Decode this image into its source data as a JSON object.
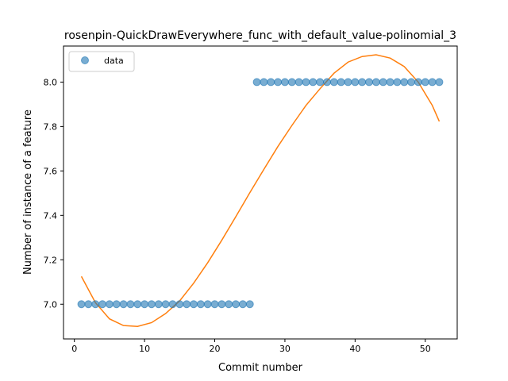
{
  "chart_data": {
    "type": "scatter",
    "title": "rosenpin-QuickDrawEverywhere_func_with_default_value-polinomial_3",
    "xlabel": "Commit number",
    "ylabel": "Number of instance of a feature",
    "xlim": [
      -1.55,
      54.55
    ],
    "ylim": [
      6.8437,
      8.1623
    ],
    "xticks": [
      0,
      10,
      20,
      30,
      40,
      50
    ],
    "yticks": [
      7.0,
      7.2,
      7.4,
      7.6,
      7.8,
      8.0
    ],
    "xtick_labels": [
      "0",
      "10",
      "20",
      "30",
      "40",
      "50"
    ],
    "ytick_labels": [
      "7.0",
      "7.2",
      "7.4",
      "7.6",
      "7.8",
      "8.0"
    ],
    "grid": false,
    "legend": {
      "position": "top-left",
      "entries": [
        "data"
      ]
    },
    "series": [
      {
        "name": "data",
        "kind": "points",
        "color": "#1f77b4",
        "x": [
          1,
          2,
          3,
          4,
          5,
          6,
          7,
          8,
          9,
          10,
          11,
          12,
          13,
          14,
          15,
          16,
          17,
          18,
          19,
          20,
          21,
          22,
          23,
          24,
          25,
          26,
          27,
          28,
          29,
          30,
          31,
          32,
          33,
          34,
          35,
          36,
          37,
          38,
          39,
          40,
          41,
          42,
          43,
          44,
          45,
          46,
          47,
          48,
          49,
          50,
          51,
          52
        ],
        "y": [
          7,
          7,
          7,
          7,
          7,
          7,
          7,
          7,
          7,
          7,
          7,
          7,
          7,
          7,
          7,
          7,
          7,
          7,
          7,
          7,
          7,
          7,
          7,
          7,
          7,
          8,
          8,
          8,
          8,
          8,
          8,
          8,
          8,
          8,
          8,
          8,
          8,
          8,
          8,
          8,
          8,
          8,
          8,
          8,
          8,
          8,
          8,
          8,
          8,
          8,
          8,
          8
        ]
      },
      {
        "kind": "fit-line",
        "color": "#ff7f0e",
        "model": "cubic",
        "x": [
          1,
          3,
          5,
          7,
          9,
          11,
          13,
          15,
          17,
          19,
          21,
          23,
          25,
          27,
          29,
          31,
          33,
          35,
          37,
          39,
          41,
          43,
          45,
          47,
          49,
          51,
          52
        ],
        "y": [
          7.125,
          7.007,
          6.934,
          6.904,
          6.9,
          6.917,
          6.958,
          7.015,
          7.095,
          7.187,
          7.288,
          7.394,
          7.502,
          7.607,
          7.71,
          7.805,
          7.895,
          7.97,
          8.04,
          8.09,
          8.115,
          8.123,
          8.108,
          8.07,
          8.0,
          7.895,
          7.823
        ]
      }
    ]
  }
}
